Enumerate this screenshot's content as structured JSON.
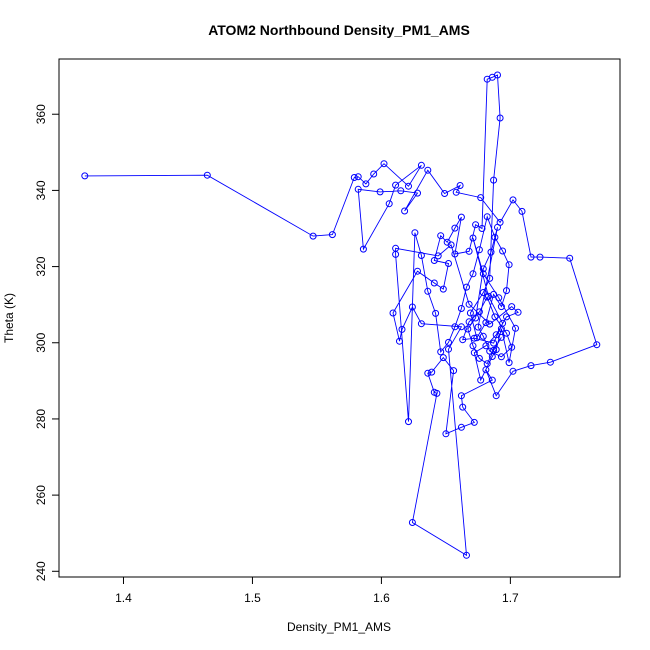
{
  "chart_data": {
    "type": "line",
    "title": "ATOM2 Northbound Density_PM1_AMS",
    "xlabel": "Density_PM1_AMS",
    "ylabel": "Theta (K)",
    "xlim": [
      1.35,
      1.785
    ],
    "ylim": [
      238.5,
      374.5
    ],
    "x_ticks": [
      1.4,
      1.5,
      1.6,
      1.7
    ],
    "x_tick_labels": [
      "1.4",
      "1.5",
      "1.6",
      "1.7"
    ],
    "y_ticks": [
      240,
      260,
      280,
      300,
      320,
      340,
      360
    ],
    "y_tick_labels": [
      "240",
      "260",
      "280",
      "300",
      "320",
      "340",
      "360"
    ],
    "line_color": "#0000ff",
    "marker": "open-circle",
    "series": [
      {
        "points": [
          [
            1.37,
            343.8
          ],
          [
            1.465,
            344.0
          ],
          [
            1.547,
            328.0
          ],
          [
            1.562,
            328.4
          ],
          [
            1.579,
            343.4
          ],
          [
            1.582,
            343.6
          ],
          [
            1.588,
            341.7
          ],
          [
            1.594,
            344.3
          ],
          [
            1.602,
            347.0
          ],
          [
            1.621,
            341.1
          ],
          [
            1.631,
            346.6
          ],
          [
            1.611,
            341.4
          ],
          [
            1.606,
            336.5
          ],
          [
            1.586,
            324.6
          ],
          [
            1.582,
            340.3
          ],
          [
            1.599,
            339.6
          ],
          [
            1.615,
            339.9
          ],
          [
            1.628,
            339.3
          ],
          [
            1.618,
            334.6
          ],
          [
            1.636,
            345.3
          ],
          [
            1.649,
            339.2
          ],
          [
            1.661,
            341.3
          ],
          [
            1.658,
            339.5
          ],
          [
            1.677,
            338.1
          ],
          [
            1.692,
            331.6
          ],
          [
            1.702,
            337.5
          ],
          [
            1.709,
            334.5
          ],
          [
            1.716,
            322.5
          ],
          [
            1.723,
            322.5
          ],
          [
            1.746,
            322.2
          ],
          [
            1.767,
            299.5
          ],
          [
            1.731,
            294.9
          ],
          [
            1.716,
            294.0
          ],
          [
            1.702,
            292.5
          ],
          [
            1.689,
            286.1
          ],
          [
            1.681,
            292.9
          ],
          [
            1.686,
            290.2
          ],
          [
            1.662,
            286.1
          ],
          [
            1.663,
            283.1
          ],
          [
            1.672,
            279.1
          ],
          [
            1.662,
            277.8
          ],
          [
            1.65,
            276.1
          ],
          [
            1.656,
            292.7
          ],
          [
            1.648,
            296.1
          ],
          [
            1.639,
            292.3
          ],
          [
            1.636,
            292.0
          ],
          [
            1.641,
            287.0
          ],
          [
            1.643,
            286.7
          ],
          [
            1.624,
            252.8
          ],
          [
            1.666,
            244.2
          ],
          [
            1.652,
            298.3
          ],
          [
            1.662,
            304.2
          ],
          [
            1.631,
            305.0
          ],
          [
            1.624,
            309.4
          ],
          [
            1.616,
            303.5
          ],
          [
            1.614,
            300.4
          ],
          [
            1.609,
            307.8
          ],
          [
            1.628,
            318.8
          ],
          [
            1.641,
            315.7
          ],
          [
            1.648,
            314.1
          ],
          [
            1.652,
            320.8
          ],
          [
            1.641,
            321.6
          ],
          [
            1.646,
            328.1
          ],
          [
            1.651,
            326.4
          ],
          [
            1.657,
            330.1
          ],
          [
            1.662,
            333.0
          ],
          [
            1.657,
            323.3
          ],
          [
            1.668,
            324.0
          ],
          [
            1.673,
            331.0
          ],
          [
            1.678,
            330.0
          ],
          [
            1.682,
            369.2
          ],
          [
            1.686,
            369.7
          ],
          [
            1.69,
            370.3
          ],
          [
            1.692,
            359.0
          ],
          [
            1.687,
            342.7
          ],
          [
            1.684,
            316.9
          ],
          [
            1.679,
            313.2
          ],
          [
            1.669,
            307.8
          ],
          [
            1.674,
            301.3
          ],
          [
            1.681,
            305.3
          ],
          [
            1.687,
            312.7
          ],
          [
            1.693,
            309.5
          ],
          [
            1.697,
            313.7
          ],
          [
            1.699,
            320.5
          ],
          [
            1.694,
            324.1
          ],
          [
            1.688,
            327.7
          ],
          [
            1.682,
            333.1
          ],
          [
            1.676,
            324.4
          ],
          [
            1.671,
            318.1
          ],
          [
            1.666,
            314.6
          ],
          [
            1.662,
            309.0
          ],
          [
            1.657,
            304.2
          ],
          [
            1.652,
            300.1
          ],
          [
            1.646,
            297.6
          ],
          [
            1.642,
            307.7
          ],
          [
            1.636,
            313.5
          ],
          [
            1.631,
            322.9
          ],
          [
            1.626,
            328.9
          ],
          [
            1.621,
            279.3
          ],
          [
            1.611,
            323.2
          ],
          [
            1.611,
            324.8
          ],
          [
            1.644,
            322.8
          ],
          [
            1.654,
            325.7
          ],
          [
            1.668,
            310.1
          ],
          [
            1.684,
            304.9
          ],
          [
            1.701,
            309.5
          ],
          [
            1.706,
            308.0
          ],
          [
            1.697,
            306.8
          ],
          [
            1.689,
            302.1
          ],
          [
            1.681,
            299.2
          ],
          [
            1.672,
            297.4
          ],
          [
            1.677,
            290.2
          ],
          [
            1.686,
            296.4
          ],
          [
            1.689,
            298.2
          ],
          [
            1.693,
            303.7
          ],
          [
            1.699,
            294.8
          ],
          [
            1.704,
            303.8
          ],
          [
            1.691,
            311.8
          ],
          [
            1.679,
            318.1
          ],
          [
            1.671,
            327.5
          ],
          [
            1.683,
            312.2
          ],
          [
            1.694,
            305.1
          ],
          [
            1.687,
            299.9
          ],
          [
            1.672,
            301.2
          ],
          [
            1.663,
            300.8
          ],
          [
            1.668,
            305.5
          ],
          [
            1.676,
            308.1
          ],
          [
            1.682,
            312.0
          ],
          [
            1.688,
            306.8
          ],
          [
            1.697,
            302.5
          ],
          [
            1.701,
            298.8
          ],
          [
            1.693,
            296.3
          ],
          [
            1.684,
            297.8
          ],
          [
            1.679,
            301.7
          ],
          [
            1.675,
            304.1
          ],
          [
            1.69,
            330.3
          ],
          [
            1.685,
            323.8
          ],
          [
            1.679,
            319.4
          ],
          [
            1.673,
            306.5
          ],
          [
            1.667,
            303.6
          ],
          [
            1.671,
            299.2
          ],
          [
            1.676,
            295.9
          ],
          [
            1.682,
            294.5
          ],
          [
            1.687,
            298.0
          ],
          [
            1.693,
            301.4
          ]
        ]
      }
    ]
  }
}
